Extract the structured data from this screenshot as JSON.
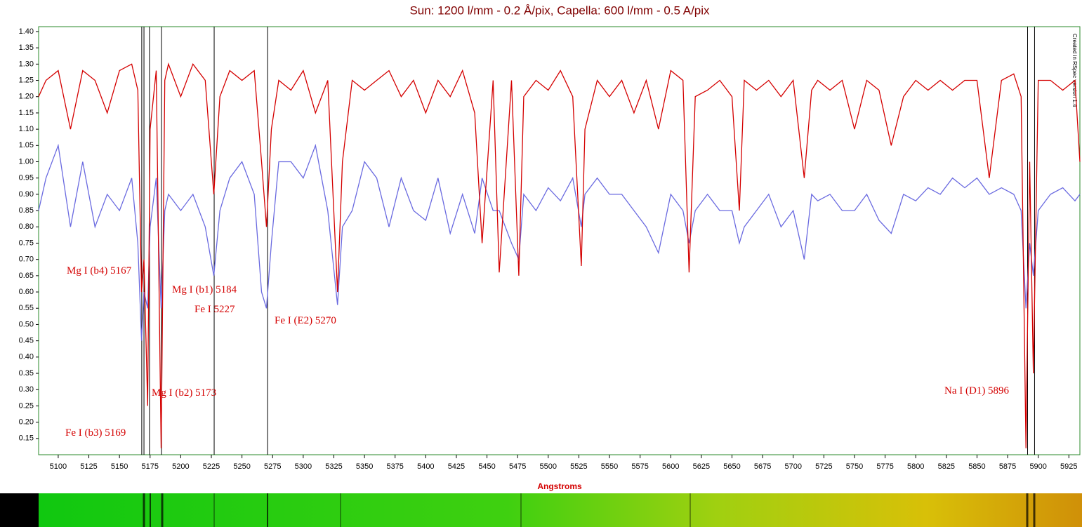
{
  "chart_data": {
    "type": "line",
    "title": "Sun: 1200 l/mm -  0.2 Å/pix, Capella: 600 l/mm - 0.5 A/pix",
    "xlabel": "Angstroms",
    "watermark": "Created in RSpec version 1.4",
    "xlim": [
      5084,
      5934
    ],
    "ylim": [
      0.1,
      1.415
    ],
    "xticks": [
      5100,
      5125,
      5150,
      5175,
      5200,
      5225,
      5250,
      5275,
      5300,
      5325,
      5350,
      5375,
      5400,
      5425,
      5450,
      5475,
      5500,
      5525,
      5550,
      5575,
      5600,
      5625,
      5650,
      5675,
      5700,
      5725,
      5750,
      5775,
      5800,
      5825,
      5850,
      5875,
      5900,
      5925
    ],
    "yticks": [
      0.15,
      {
        "value": 0.2,
        "label": "0.20"
      },
      0.25,
      {
        "value": 0.3,
        "label": "0.30"
      },
      0.35,
      {
        "value": 0.4,
        "label": "0.40"
      },
      0.45,
      {
        "value": 0.5,
        "label": "0.50"
      },
      0.55,
      {
        "value": 0.6,
        "label": "0.60"
      },
      0.65,
      {
        "value": 0.7,
        "label": "0.70"
      },
      0.75,
      {
        "value": 0.8,
        "label": "0.80"
      },
      0.85,
      {
        "value": 0.9,
        "label": "0.90"
      },
      0.95,
      {
        "value": 1,
        "label": "1.00"
      },
      1.05,
      {
        "value": 1.1,
        "label": "1.10"
      },
      1.15,
      {
        "value": 1.2,
        "label": "1.20"
      },
      1.25,
      {
        "value": 1.3,
        "label": "1.30"
      },
      1.35,
      {
        "value": 1.4,
        "label": "1.40"
      }
    ],
    "x": [
      5084,
      5090,
      5100,
      5110,
      5120,
      5130,
      5140,
      5150,
      5160,
      5165,
      5168,
      5170,
      5173,
      5175,
      5180,
      5184,
      5187,
      5190,
      5200,
      5210,
      5220,
      5227,
      5232,
      5240,
      5250,
      5260,
      5266,
      5270,
      5274,
      5280,
      5290,
      5300,
      5310,
      5320,
      5328,
      5332,
      5340,
      5350,
      5360,
      5370,
      5380,
      5390,
      5400,
      5410,
      5420,
      5430,
      5440,
      5446,
      5455,
      5460,
      5470,
      5476,
      5480,
      5490,
      5500,
      5510,
      5520,
      5527,
      5530,
      5540,
      5550,
      5560,
      5570,
      5580,
      5590,
      5600,
      5610,
      5615,
      5620,
      5630,
      5640,
      5650,
      5656,
      5660,
      5670,
      5680,
      5690,
      5700,
      5709,
      5715,
      5720,
      5730,
      5740,
      5750,
      5760,
      5770,
      5780,
      5790,
      5800,
      5810,
      5820,
      5830,
      5840,
      5850,
      5860,
      5870,
      5880,
      5886,
      5890,
      5893,
      5896,
      5900,
      5910,
      5920,
      5930,
      5934
    ],
    "series": [
      {
        "color": "#d40000",
        "values": [
          1.2,
          1.25,
          1.28,
          1.1,
          1.28,
          1.25,
          1.15,
          1.28,
          1.3,
          1.22,
          0.6,
          0.7,
          0.25,
          1.1,
          1.28,
          0.12,
          1.25,
          1.3,
          1.2,
          1.3,
          1.25,
          0.9,
          1.2,
          1.28,
          1.25,
          1.28,
          1.0,
          0.8,
          1.1,
          1.25,
          1.22,
          1.28,
          1.15,
          1.25,
          0.6,
          1.0,
          1.25,
          1.22,
          1.25,
          1.28,
          1.2,
          1.25,
          1.15,
          1.25,
          1.2,
          1.28,
          1.15,
          0.75,
          1.25,
          0.66,
          1.25,
          0.65,
          1.2,
          1.25,
          1.22,
          1.28,
          1.2,
          0.68,
          1.1,
          1.25,
          1.2,
          1.25,
          1.15,
          1.25,
          1.1,
          1.28,
          1.25,
          0.66,
          1.2,
          1.22,
          1.25,
          1.2,
          0.85,
          1.25,
          1.22,
          1.25,
          1.2,
          1.25,
          0.95,
          1.22,
          1.25,
          1.22,
          1.25,
          1.1,
          1.25,
          1.22,
          1.05,
          1.2,
          1.25,
          1.22,
          1.25,
          1.22,
          1.25,
          1.25,
          0.95,
          1.25,
          1.27,
          1.2,
          0.12,
          1.0,
          0.35,
          1.25,
          1.25,
          1.22,
          1.25,
          1.0
        ]
      },
      {
        "color": "#6a6ae0",
        "values": [
          0.85,
          0.95,
          1.05,
          0.8,
          1.0,
          0.8,
          0.9,
          0.85,
          0.95,
          0.75,
          0.45,
          0.6,
          0.55,
          0.8,
          0.95,
          0.55,
          0.85,
          0.9,
          0.85,
          0.9,
          0.8,
          0.65,
          0.85,
          0.95,
          1.0,
          0.9,
          0.6,
          0.55,
          0.75,
          1.0,
          1.0,
          0.95,
          1.05,
          0.85,
          0.56,
          0.8,
          0.85,
          1.0,
          0.95,
          0.8,
          0.95,
          0.85,
          0.82,
          0.95,
          0.78,
          0.9,
          0.78,
          0.95,
          0.85,
          0.85,
          0.75,
          0.7,
          0.9,
          0.85,
          0.92,
          0.88,
          0.95,
          0.8,
          0.9,
          0.95,
          0.9,
          0.9,
          0.85,
          0.8,
          0.72,
          0.9,
          0.85,
          0.75,
          0.85,
          0.9,
          0.85,
          0.85,
          0.75,
          0.8,
          0.85,
          0.9,
          0.8,
          0.85,
          0.7,
          0.9,
          0.88,
          0.9,
          0.85,
          0.85,
          0.9,
          0.82,
          0.78,
          0.9,
          0.88,
          0.92,
          0.9,
          0.95,
          0.92,
          0.95,
          0.9,
          0.92,
          0.9,
          0.85,
          0.55,
          0.75,
          0.65,
          0.85,
          0.9,
          0.92,
          0.88,
          0.9
        ]
      }
    ],
    "vlines": [
      5168.2,
      5170,
      5174.5,
      5184.3,
      5227.3,
      5270.9,
      5891.3,
      5897
    ],
    "annotations": [
      "Mg I (b4) 5167",
      "Mg I (b1) 5184",
      "Fe I 5227",
      "Fe I (E2) 5270",
      "Mg I (b2) 5173",
      "Fe I (b3) 5169",
      "Na I (D1) 5896"
    ]
  }
}
